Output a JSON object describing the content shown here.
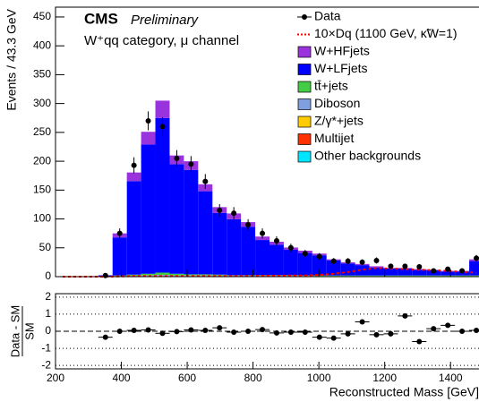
{
  "chart_data": [
    {
      "type": "histogram",
      "experiment": "CMS",
      "status": "Preliminary",
      "category": "W⁺qq category, μ channel",
      "ylabel": "Events / 43.3 GeV",
      "bins": [
        200,
        243.3,
        286.7,
        330,
        373.3,
        416.7,
        460,
        503.3,
        546.7,
        590,
        633.3,
        676.7,
        720,
        763.3,
        806.7,
        850,
        893.3,
        936.7,
        980,
        1023.3,
        1066.7,
        1110,
        1153.3,
        1196.7,
        1240,
        1283.3,
        1326.7,
        1370,
        1413.3,
        1456.7,
        1500
      ],
      "xlim": [
        200,
        1500
      ],
      "ylim": [
        0,
        467
      ],
      "yticks": [
        0,
        50,
        100,
        150,
        200,
        250,
        300,
        350,
        400,
        450
      ],
      "series": [
        {
          "name": "Data",
          "style": "points",
          "color": "#000000",
          "values": [
            null,
            null,
            null,
            2,
            75,
            193,
            270,
            260,
            205,
            195,
            165,
            115,
            110,
            90,
            75,
            62,
            50,
            40,
            35,
            27,
            27,
            25,
            28,
            18,
            18,
            17,
            10,
            13,
            10,
            32
          ]
        },
        {
          "name": "10×Dq (1100 GeV, κ̃W=1)",
          "style": "line",
          "color": "#ff0000",
          "values": [
            0,
            0,
            0,
            0,
            0.5,
            1,
            1,
            1,
            1,
            1,
            1,
            1,
            1,
            1,
            1.5,
            1.5,
            2,
            2,
            3,
            5,
            8,
            12,
            15,
            14,
            13,
            12,
            11,
            10,
            8,
            7
          ]
        },
        {
          "name": "W+HFjets",
          "style": "stack",
          "color": "#9933dd",
          "values": [
            0,
            0,
            0,
            0.3,
            7,
            15,
            22,
            30,
            15,
            15,
            12,
            10,
            10,
            8,
            6,
            5,
            4,
            4,
            3,
            2,
            2,
            2,
            2,
            1,
            1,
            1,
            1,
            1,
            1,
            3
          ]
        },
        {
          "name": "W+LFjets",
          "style": "stack",
          "color": "#0000ff",
          "values": [
            0,
            0,
            0.5,
            2,
            66,
            162,
            224,
            268,
            190,
            181,
            144,
            107,
            97,
            84,
            61,
            53,
            44,
            39,
            35,
            26,
            21,
            18,
            14,
            12,
            12,
            10,
            9,
            7,
            7,
            25
          ]
        },
        {
          "name": "tt̄+jets",
          "style": "stack",
          "color": "#44cc44",
          "values": [
            0,
            0,
            0,
            0.2,
            1,
            2,
            3,
            4,
            3,
            2,
            2,
            2,
            1,
            1,
            1,
            1,
            1,
            1,
            1,
            1,
            1,
            1,
            1,
            1,
            1,
            1,
            1,
            1,
            1,
            1
          ]
        },
        {
          "name": "Diboson",
          "style": "stack",
          "color": "#7f9fdf",
          "values": [
            0,
            0,
            0,
            0,
            0.5,
            1,
            1,
            2,
            1,
            1,
            1,
            1,
            1,
            1,
            1,
            1,
            1,
            0.5,
            0.5,
            0.5,
            0.5,
            0.5,
            0.5,
            0.5,
            0.5,
            0.5,
            0.5,
            0.5,
            0.5,
            0.5
          ]
        },
        {
          "name": "Z/γ*+jets",
          "style": "stack",
          "color": "#ffcc00",
          "values": [
            0,
            0,
            0,
            0,
            0.5,
            0.5,
            1,
            1,
            1,
            1,
            1,
            0.5,
            0.5,
            0.5,
            0.5,
            0.5,
            0.5,
            0.5,
            0.5,
            0.5,
            0.5,
            0.5,
            0.5,
            0.5,
            0.5,
            0.5,
            0.5,
            0.5,
            0.5,
            0.5
          ]
        },
        {
          "name": "Multijet",
          "style": "stack",
          "color": "#ff3300",
          "values": [
            0,
            0,
            0,
            0,
            0,
            0,
            0,
            0,
            0,
            0,
            0,
            0,
            0,
            0,
            0,
            0,
            0,
            0,
            0,
            0,
            0,
            0,
            0,
            0,
            0,
            0,
            0,
            0,
            0,
            0
          ]
        },
        {
          "name": "Other backgrounds",
          "style": "stack",
          "color": "#00e5ff",
          "values": [
            0,
            0,
            0,
            0,
            0,
            0,
            0,
            0,
            0,
            0,
            0,
            0,
            0,
            0,
            0,
            0,
            0,
            0,
            0,
            0,
            0,
            0,
            0,
            0,
            0,
            0,
            0,
            0,
            0,
            0
          ]
        }
      ]
    },
    {
      "type": "scatter",
      "ylabel": [
        "Data - SM",
        "SM"
      ],
      "xlabel": "Reconstructed Mass [GeV]",
      "xlim": [
        200,
        1500
      ],
      "ylim": [
        -2.2,
        2.2
      ],
      "xticks": [
        200,
        400,
        600,
        800,
        1000,
        1200,
        1400
      ],
      "yticks": [
        -2,
        -1,
        0,
        1,
        2
      ],
      "color": "#000000",
      "x": [
        351.7,
        395,
        438.3,
        481.7,
        525,
        568.3,
        611.7,
        655,
        698.3,
        741.7,
        785,
        828.3,
        871.7,
        915,
        958.3,
        1001.7,
        1045,
        1088.3,
        1131.7,
        1175,
        1218.3,
        1261.7,
        1305,
        1348.3,
        1391.7,
        1435,
        1478.3
      ],
      "values": [
        -0.35,
        0,
        0.05,
        0.08,
        -0.12,
        -0.02,
        0.08,
        0.05,
        0.2,
        -0.05,
        0,
        0.1,
        -0.1,
        -0.05,
        -0.05,
        -0.35,
        -0.4,
        -0.15,
        0.55,
        -0.2,
        -0.15,
        0.9,
        -0.6,
        0.15,
        0.35,
        0,
        0.05
      ]
    }
  ]
}
